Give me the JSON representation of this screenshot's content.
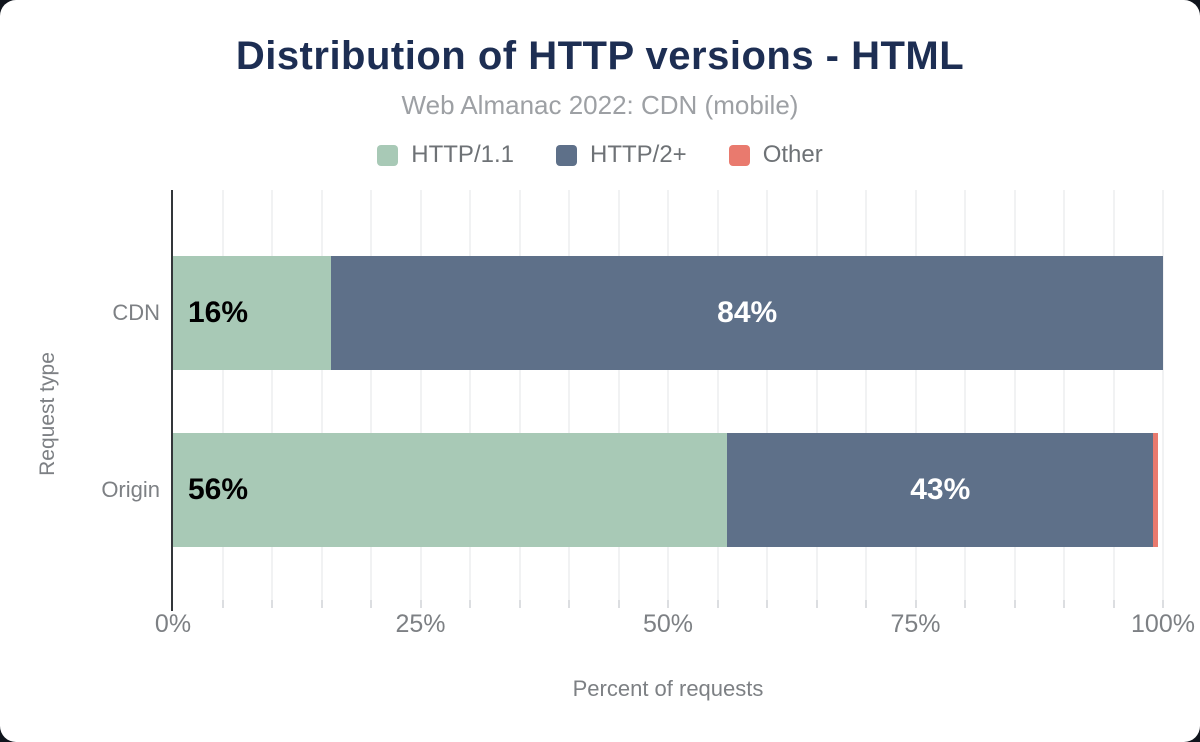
{
  "colors": {
    "page_bg": "#10151d",
    "card_bg": "#ffffff",
    "title": "#1d2e53",
    "subtitle": "#9da0a4",
    "legend_text": "#6e7276",
    "axis_text": "#7d8084",
    "grid": "#f1f2f3",
    "axis_line": "#33363a"
  },
  "chart_data": {
    "type": "bar",
    "orientation": "horizontal-stacked",
    "title": "Distribution of HTTP versions - HTML",
    "subtitle": "Web Almanac 2022: CDN (mobile)",
    "categories": [
      "CDN",
      "Origin"
    ],
    "series": [
      {
        "name": "HTTP/1.1",
        "color": "#a8c9b6",
        "values": [
          16,
          56
        ],
        "labels": [
          "16%",
          "56%"
        ],
        "label_color": "#000000",
        "label_align": "left"
      },
      {
        "name": "HTTP/2+",
        "color": "#5e7089",
        "values": [
          84,
          43
        ],
        "labels": [
          "84%",
          "43%"
        ],
        "label_color": "#ffffff",
        "label_align": "center"
      },
      {
        "name": "Other",
        "color": "#e97a6e",
        "values": [
          0,
          0.5
        ],
        "labels": [
          "",
          ""
        ],
        "label_color": "#ffffff",
        "label_align": "center"
      }
    ],
    "xlabel": "Percent of requests",
    "ylabel": "Request type",
    "x_ticks": [
      "0%",
      "25%",
      "50%",
      "75%",
      "100%"
    ],
    "x_tick_values": [
      0,
      25,
      50,
      75,
      100
    ],
    "xlim": [
      0,
      100
    ],
    "grid_interval": 5,
    "grid": true,
    "legend_position": "top"
  }
}
